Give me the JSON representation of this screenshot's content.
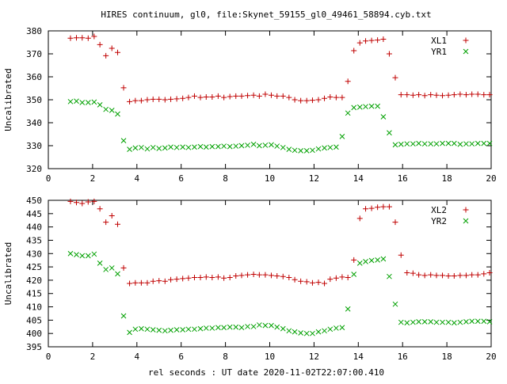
{
  "title": "HIRES continuum, gl0, file:Skynet_59155_gl0_49461_58894.cyb.txt",
  "xlabel": "rel seconds : UT date 2020-11-02T22:07:00.410",
  "chart_data": [
    {
      "type": "scatter",
      "ylabel": "Uncalibrated",
      "xlim": [
        0,
        20
      ],
      "ylim": [
        320,
        380
      ],
      "xticks": [
        0,
        2,
        4,
        6,
        8,
        10,
        12,
        14,
        16,
        18,
        20
      ],
      "yticks": [
        320,
        330,
        340,
        350,
        360,
        370,
        380
      ],
      "legend_position": "top-right",
      "grid": false,
      "series": [
        {
          "name": "XL1",
          "marker": "+",
          "color": "#c00000",
          "x": [
            1.0,
            1.27,
            1.53,
            1.8,
            2.07,
            2.33,
            2.6,
            2.87,
            3.13,
            3.4,
            3.67,
            3.93,
            4.2,
            4.47,
            4.73,
            5.0,
            5.27,
            5.53,
            5.8,
            6.07,
            6.33,
            6.6,
            6.87,
            7.13,
            7.4,
            7.67,
            7.93,
            8.2,
            8.47,
            8.73,
            9.0,
            9.27,
            9.53,
            9.8,
            10.07,
            10.33,
            10.6,
            10.87,
            11.13,
            11.4,
            11.67,
            11.93,
            12.2,
            12.47,
            12.73,
            13.0,
            13.27,
            13.53,
            13.8,
            14.07,
            14.33,
            14.6,
            14.87,
            15.13,
            15.4,
            15.67,
            15.93,
            16.2,
            16.47,
            16.73,
            17.0,
            17.27,
            17.53,
            17.8,
            18.07,
            18.33,
            18.6,
            18.87,
            19.13,
            19.4,
            19.67,
            19.93
          ],
          "y": [
            376.8,
            377.0,
            377.0,
            376.8,
            377.6,
            374.0,
            369.2,
            372.4,
            370.6,
            355.2,
            349.2,
            349.6,
            349.6,
            350.0,
            350.2,
            350.2,
            350.0,
            350.2,
            350.4,
            350.6,
            351.0,
            351.6,
            351.0,
            351.2,
            351.2,
            351.6,
            351.0,
            351.4,
            351.6,
            351.6,
            351.8,
            352.0,
            351.6,
            352.4,
            352.0,
            351.6,
            351.6,
            351.0,
            350.0,
            349.6,
            349.6,
            349.8,
            350.0,
            350.6,
            351.2,
            351.0,
            351.0,
            358.0,
            371.4,
            374.8,
            375.6,
            375.8,
            376.0,
            376.4,
            370.0,
            359.6,
            352.2,
            352.2,
            352.0,
            352.2,
            351.8,
            352.2,
            352.0,
            351.8,
            352.0,
            352.2,
            352.4,
            352.2,
            352.4,
            352.4,
            352.2,
            352.2
          ]
        },
        {
          "name": "YR1",
          "marker": "x",
          "color": "#00a000",
          "x": [
            1.0,
            1.27,
            1.53,
            1.8,
            2.07,
            2.33,
            2.6,
            2.87,
            3.13,
            3.4,
            3.67,
            3.93,
            4.2,
            4.47,
            4.73,
            5.0,
            5.27,
            5.53,
            5.8,
            6.07,
            6.33,
            6.6,
            6.87,
            7.13,
            7.4,
            7.67,
            7.93,
            8.2,
            8.47,
            8.73,
            9.0,
            9.27,
            9.53,
            9.8,
            10.07,
            10.33,
            10.6,
            10.87,
            11.13,
            11.4,
            11.67,
            11.93,
            12.2,
            12.47,
            12.73,
            13.0,
            13.27,
            13.53,
            13.8,
            14.07,
            14.33,
            14.6,
            14.87,
            15.13,
            15.4,
            15.67,
            15.93,
            16.2,
            16.47,
            16.73,
            17.0,
            17.27,
            17.53,
            17.8,
            18.07,
            18.33,
            18.6,
            18.87,
            19.13,
            19.4,
            19.67,
            19.93
          ],
          "y": [
            349.2,
            349.4,
            348.8,
            348.8,
            349.0,
            347.8,
            345.8,
            345.4,
            343.8,
            332.2,
            328.4,
            329.0,
            329.2,
            328.6,
            329.2,
            328.8,
            329.0,
            329.4,
            329.2,
            329.4,
            329.2,
            329.4,
            329.6,
            329.4,
            329.6,
            329.6,
            329.8,
            329.6,
            329.8,
            330.0,
            330.2,
            330.6,
            330.0,
            330.2,
            330.4,
            329.8,
            329.2,
            328.4,
            328.0,
            327.8,
            327.8,
            328.0,
            328.6,
            329.0,
            329.2,
            329.4,
            334.0,
            344.2,
            346.6,
            346.8,
            347.0,
            347.2,
            347.2,
            342.6,
            335.6,
            330.4,
            330.6,
            330.8,
            330.8,
            331.0,
            330.8,
            330.8,
            330.8,
            331.0,
            331.0,
            331.0,
            330.6,
            330.8,
            330.8,
            331.0,
            331.0,
            331.0
          ]
        }
      ]
    },
    {
      "type": "scatter",
      "ylabel": "Uncalibrated",
      "xlim": [
        0,
        20
      ],
      "ylim": [
        395,
        450
      ],
      "xticks": [
        0,
        2,
        4,
        6,
        8,
        10,
        12,
        14,
        16,
        18,
        20
      ],
      "yticks": [
        395,
        400,
        405,
        410,
        415,
        420,
        425,
        430,
        435,
        440,
        445,
        450
      ],
      "legend_position": "top-right",
      "grid": false,
      "series": [
        {
          "name": "XL2",
          "marker": "+",
          "color": "#c00000",
          "x": [
            1.0,
            1.27,
            1.53,
            1.8,
            2.07,
            2.33,
            2.6,
            2.87,
            3.13,
            3.4,
            3.67,
            3.93,
            4.2,
            4.47,
            4.73,
            5.0,
            5.27,
            5.53,
            5.8,
            6.07,
            6.33,
            6.6,
            6.87,
            7.13,
            7.4,
            7.67,
            7.93,
            8.2,
            8.47,
            8.73,
            9.0,
            9.27,
            9.53,
            9.8,
            10.07,
            10.33,
            10.6,
            10.87,
            11.13,
            11.4,
            11.67,
            11.93,
            12.2,
            12.47,
            12.73,
            13.0,
            13.27,
            13.53,
            13.8,
            14.07,
            14.33,
            14.6,
            14.87,
            15.13,
            15.4,
            15.67,
            15.93,
            16.2,
            16.47,
            16.73,
            17.0,
            17.27,
            17.53,
            17.8,
            18.07,
            18.33,
            18.6,
            18.87,
            19.13,
            19.4,
            19.67,
            19.93
          ],
          "y": [
            449.6,
            449.2,
            448.8,
            449.4,
            449.6,
            446.8,
            441.8,
            444.2,
            441.0,
            424.6,
            418.8,
            419.0,
            419.0,
            419.0,
            419.6,
            419.8,
            419.6,
            420.2,
            420.4,
            420.6,
            420.8,
            421.0,
            421.0,
            421.2,
            421.0,
            421.2,
            420.8,
            421.0,
            421.6,
            421.8,
            422.0,
            422.2,
            422.0,
            422.0,
            421.8,
            421.6,
            421.4,
            421.0,
            420.2,
            419.6,
            419.4,
            419.0,
            419.2,
            418.8,
            420.4,
            420.8,
            421.2,
            421.0,
            427.6,
            443.2,
            446.8,
            447.0,
            447.4,
            447.6,
            447.6,
            441.8,
            429.4,
            422.8,
            422.6,
            422.0,
            421.8,
            422.0,
            421.8,
            421.8,
            421.6,
            421.6,
            421.8,
            421.8,
            422.0,
            422.0,
            422.4,
            422.8
          ]
        },
        {
          "name": "YR2",
          "marker": "x",
          "color": "#00a000",
          "x": [
            1.0,
            1.27,
            1.53,
            1.8,
            2.07,
            2.33,
            2.6,
            2.87,
            3.13,
            3.4,
            3.67,
            3.93,
            4.2,
            4.47,
            4.73,
            5.0,
            5.27,
            5.53,
            5.8,
            6.07,
            6.33,
            6.6,
            6.87,
            7.13,
            7.4,
            7.67,
            7.93,
            8.2,
            8.47,
            8.73,
            9.0,
            9.27,
            9.53,
            9.8,
            10.07,
            10.33,
            10.6,
            10.87,
            11.13,
            11.4,
            11.67,
            11.93,
            12.2,
            12.47,
            12.73,
            13.0,
            13.27,
            13.53,
            13.8,
            14.07,
            14.33,
            14.6,
            14.87,
            15.13,
            15.4,
            15.67,
            15.93,
            16.2,
            16.47,
            16.73,
            17.0,
            17.27,
            17.53,
            17.8,
            18.07,
            18.33,
            18.6,
            18.87,
            19.13,
            19.4,
            19.67,
            19.93
          ],
          "y": [
            430.0,
            429.6,
            429.2,
            429.2,
            429.8,
            426.4,
            424.0,
            424.6,
            422.4,
            406.6,
            400.4,
            401.6,
            401.8,
            401.6,
            401.4,
            401.2,
            401.0,
            401.2,
            401.4,
            401.4,
            401.6,
            401.6,
            401.8,
            402.0,
            402.0,
            402.2,
            402.2,
            402.4,
            402.4,
            402.2,
            402.6,
            402.6,
            403.2,
            403.0,
            403.0,
            402.4,
            401.8,
            401.0,
            400.6,
            400.2,
            400.0,
            400.0,
            400.6,
            401.0,
            401.6,
            402.0,
            402.2,
            409.2,
            422.2,
            426.4,
            427.0,
            427.4,
            427.6,
            428.0,
            421.4,
            411.0,
            404.2,
            404.0,
            404.2,
            404.4,
            404.4,
            404.4,
            404.2,
            404.2,
            404.2,
            404.0,
            404.2,
            404.4,
            404.6,
            404.6,
            404.6,
            404.4
          ]
        }
      ]
    }
  ]
}
